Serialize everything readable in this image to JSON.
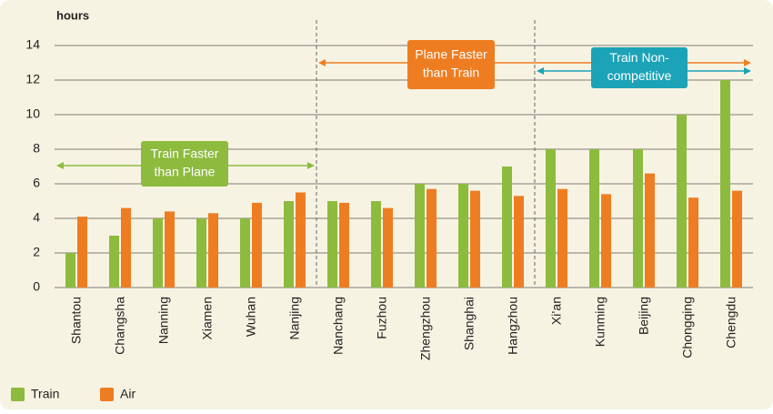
{
  "chart_data": {
    "type": "bar",
    "y_label": "hours",
    "categories": [
      "Shantou",
      "Changsha",
      "Nanning",
      "Xiamen",
      "Wuhan",
      "Nanjing",
      "Nanchang",
      "Fuzhou",
      "Zhengzhou",
      "Shanghai",
      "Hangzhou",
      "Xi’an",
      "Kunming",
      "Beijing",
      "Chongqing",
      "Chengdu"
    ],
    "series": [
      {
        "name": "Train",
        "color": "#8dbb3e",
        "values": [
          2,
          3,
          4,
          4,
          4,
          5,
          5,
          5,
          6,
          6,
          7,
          8,
          8,
          8,
          10,
          12
        ]
      },
      {
        "name": "Air",
        "color": "#ee7d22",
        "values": [
          4.1,
          4.6,
          4.4,
          4.3,
          4.9,
          5.5,
          4.9,
          4.6,
          5.7,
          5.6,
          5.3,
          5.7,
          5.4,
          6.6,
          5.2,
          5.6
        ]
      }
    ],
    "ylim": [
      0,
      14
    ],
    "yticks": [
      0,
      2,
      4,
      6,
      8,
      10,
      12,
      14
    ],
    "grid": true,
    "annotations": [
      {
        "lines": [
          "Train Faster",
          "than Plane"
        ],
        "color": "#8dbb3e"
      },
      {
        "lines": [
          "Plane Faster",
          "than Train"
        ],
        "color": "#ee7d22"
      },
      {
        "lines": [
          "Train Non-",
          "competitive"
        ],
        "color": "#1ca3b7"
      }
    ]
  }
}
